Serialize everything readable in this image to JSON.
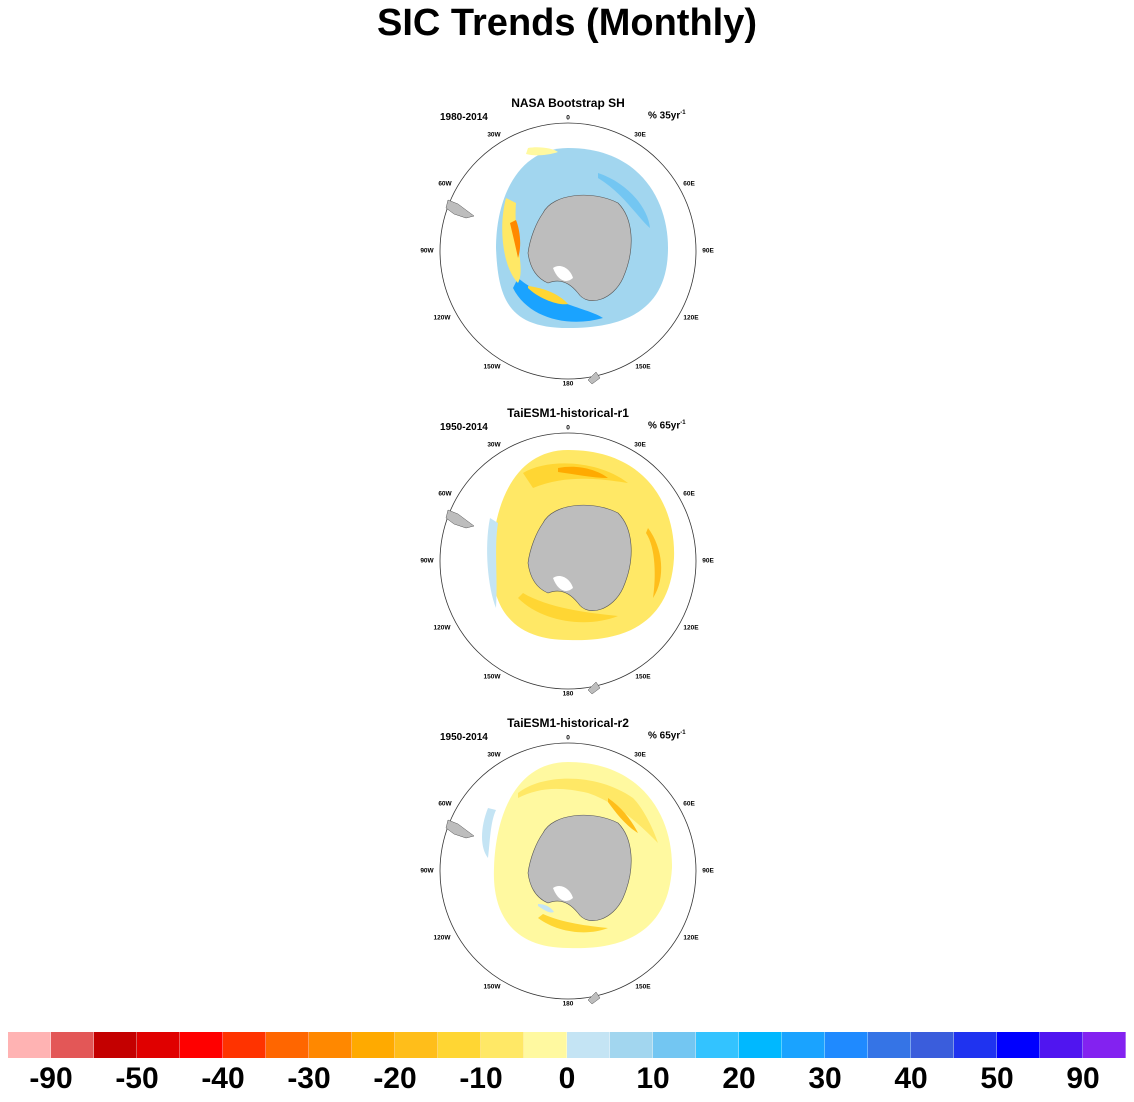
{
  "title": "SIC Trends (Monthly)",
  "panels": [
    {
      "title": "NASA Bootstrap SH",
      "period": "1980-2014",
      "units_prefix": "% 35yr",
      "units_exp": "-1",
      "lon_labels": {
        "l0": "0",
        "l30e": "30E",
        "l60e": "60E",
        "l90e": "90E",
        "l120e": "120E",
        "l150e": "150E",
        "l180": "180",
        "l150w": "150W",
        "l120w": "120W",
        "l90w": "90W",
        "l60w": "60W",
        "l30w": "30W"
      }
    },
    {
      "title": "TaiESM1-historical-r1",
      "period": "1950-2014",
      "units_prefix": "% 65yr",
      "units_exp": "-1",
      "lon_labels": {
        "l0": "0",
        "l30e": "30E",
        "l60e": "60E",
        "l90e": "90E",
        "l120e": "120E",
        "l150e": "150E",
        "l180": "180",
        "l150w": "150W",
        "l120w": "120W",
        "l90w": "90W",
        "l60w": "60W",
        "l30w": "30W"
      }
    },
    {
      "title": "TaiESM1-historical-r2",
      "period": "1950-2014",
      "units_prefix": "% 65yr",
      "units_exp": "-1",
      "lon_labels": {
        "l0": "0",
        "l30e": "30E",
        "l60e": "60E",
        "l90e": "90E",
        "l120e": "120E",
        "l150e": "150E",
        "l180": "180",
        "l150w": "150W",
        "l120w": "120W",
        "l90w": "90W",
        "l60w": "60W",
        "l30w": "30W"
      }
    }
  ],
  "colorbar": {
    "colors": [
      "#ffb3b3",
      "#e35757",
      "#c40000",
      "#e00000",
      "#ff0000",
      "#ff3300",
      "#ff6600",
      "#ff8800",
      "#ffaa00",
      "#ffbe1a",
      "#ffd633",
      "#ffe866",
      "#fff9a0",
      "#c4e4f4",
      "#a2d6ef",
      "#73c6f2",
      "#33c3ff",
      "#00b8ff",
      "#1aa3ff",
      "#1f8aff",
      "#3574e6",
      "#3a5ddc",
      "#1f33f0",
      "#0000ff",
      "#5015f0",
      "#8322f0"
    ],
    "labels": [
      "-90",
      "-50",
      "-40",
      "-30",
      "-20",
      "-10",
      "0",
      "10",
      "20",
      "30",
      "40",
      "50",
      "90"
    ]
  }
}
